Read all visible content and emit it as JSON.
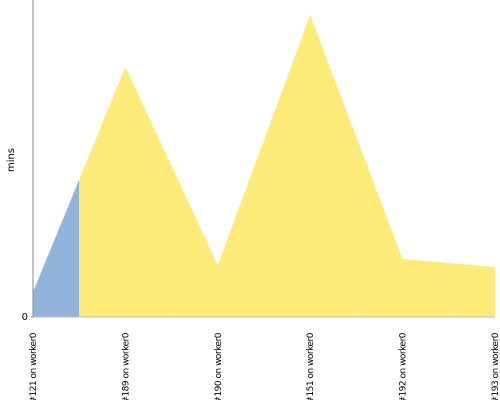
{
  "chart_data": {
    "type": "area",
    "y_label": "mins",
    "categories": [
      "#121 on worker0",
      "#189 on worker0",
      "#190 on worker0",
      "#151 on worker0",
      "#192 on worker0",
      "#193 on worker0"
    ],
    "values": [
      0.5,
      5.0,
      1.04,
      6.04,
      1.16,
      1.0
    ],
    "colors": [
      "#92b3dc",
      "#fdec79",
      "#fdec79",
      "#fdec79",
      "#fdec79",
      "#fdec79"
    ],
    "ylim": [
      0,
      6.34
    ],
    "yticks": [
      0
    ]
  }
}
